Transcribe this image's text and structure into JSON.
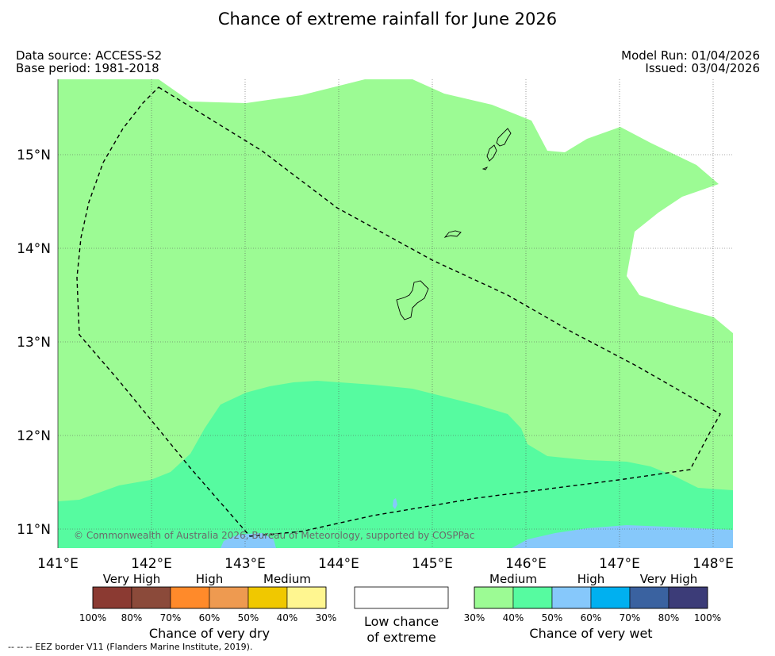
{
  "title": "Chance of extreme rainfall for June 2026",
  "meta": {
    "data_source": "Data source: ACCESS-S2",
    "base_period": "Base period: 1981-2018",
    "model_run": "Model Run: 01/04/2026",
    "issued": "Issued: 03/04/2026"
  },
  "map": {
    "lat_labels": [
      "15°N",
      "14°N",
      "13°N",
      "12°N",
      "11°N"
    ],
    "lon_labels": [
      "141°E",
      "142°E",
      "143°E",
      "144°E",
      "145°E",
      "146°E",
      "147°E",
      "148°E"
    ],
    "copyright": "© Commonwealth of Australia 2026, Bureau of Meteorology, supported by COSPPac"
  },
  "legend": {
    "dry": {
      "categories": [
        "Very High",
        "High",
        "Medium"
      ],
      "colors": [
        "#8b3a32",
        "#8b4a3a",
        "#ff8a2a",
        "#ee9a50",
        "#f0c800",
        "#fff690"
      ],
      "ticks": [
        "100%",
        "80%",
        "70%",
        "60%",
        "50%",
        "40%",
        "30%"
      ],
      "title": "Chance of very dry"
    },
    "low": {
      "line1": "Low chance",
      "line2": "of extreme"
    },
    "wet": {
      "categories": [
        "Medium",
        "High",
        "Very High"
      ],
      "colors": [
        "#9cfb94",
        "#56fba0",
        "#86c8fb",
        "#00b0f0",
        "#3a62a0",
        "#3c3c78"
      ],
      "ticks": [
        "30%",
        "40%",
        "50%",
        "60%",
        "70%",
        "80%",
        "100%"
      ],
      "title": "Chance of very wet"
    }
  },
  "footer": {
    "eez": "--  --  -- EEZ border V11 (Flanders Marine Institute, 2019)."
  }
}
